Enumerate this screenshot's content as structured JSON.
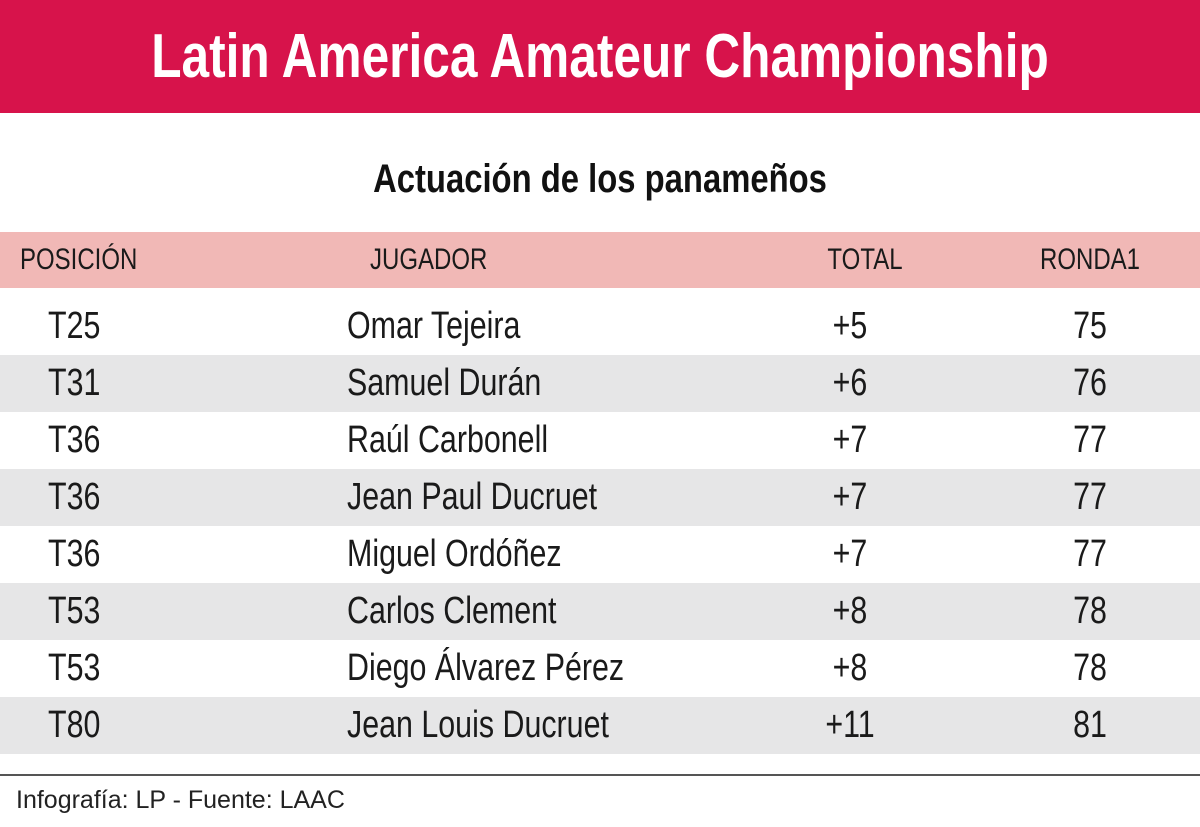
{
  "header": {
    "title": "Latin America Amateur Championship",
    "subtitle": "Actuación de los panameños"
  },
  "table": {
    "columns": [
      "POSICIÓN",
      "JUGADOR",
      "TOTAL",
      "RONDA1"
    ],
    "rows": [
      [
        "T25",
        "Omar Tejeira",
        "+5",
        "75"
      ],
      [
        "T31",
        "Samuel Durán",
        "+6",
        "76"
      ],
      [
        "T36",
        "Raúl Carbonell",
        "+7",
        "77"
      ],
      [
        "T36",
        "Jean Paul Ducruet",
        "+7",
        "77"
      ],
      [
        "T36",
        "Miguel Ordóñez",
        "+7",
        "77"
      ],
      [
        "T53",
        "Carlos Clement",
        "+8",
        "78"
      ],
      [
        "T53",
        "Diego Álvarez Pérez",
        "+8",
        "78"
      ],
      [
        "T80",
        "Jean Louis Ducruet",
        "+11",
        "81"
      ]
    ]
  },
  "footer": {
    "credit": "Infografía: LP - Fuente: LAAC"
  }
}
